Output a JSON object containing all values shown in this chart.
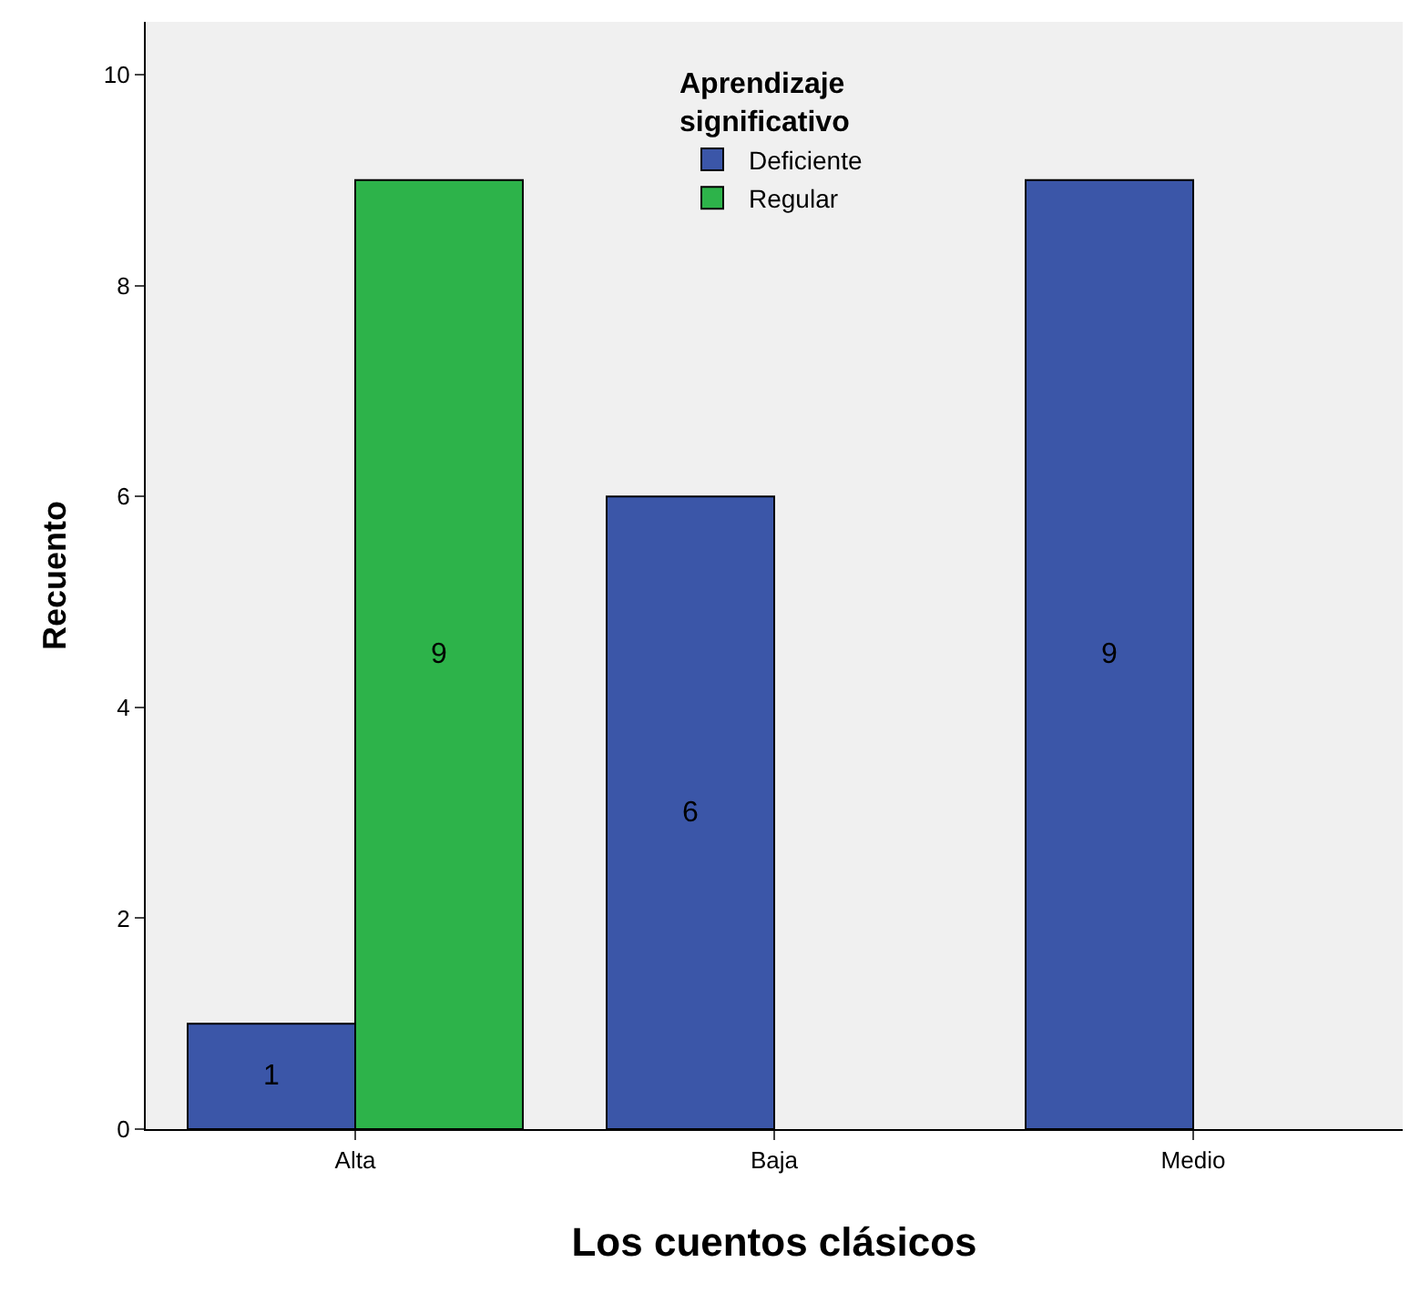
{
  "chart_data": {
    "type": "bar",
    "xlabel": "Los cuentos clásicos",
    "ylabel": "Recuento",
    "legend_title": "Aprendizaje\nsignificativo",
    "categories": [
      "Alta",
      "Baja",
      "Medio"
    ],
    "series": [
      {
        "name": "Deficiente",
        "color": "#3b56a8",
        "values": [
          1,
          6,
          9
        ]
      },
      {
        "name": "Regular",
        "color": "#2db34a",
        "values": [
          9,
          null,
          null
        ]
      }
    ],
    "ylim": [
      0,
      10.5
    ],
    "yticks": [
      0,
      2,
      4,
      6,
      8,
      10
    ],
    "grid": false,
    "legend": "top",
    "data_labels": true
  }
}
